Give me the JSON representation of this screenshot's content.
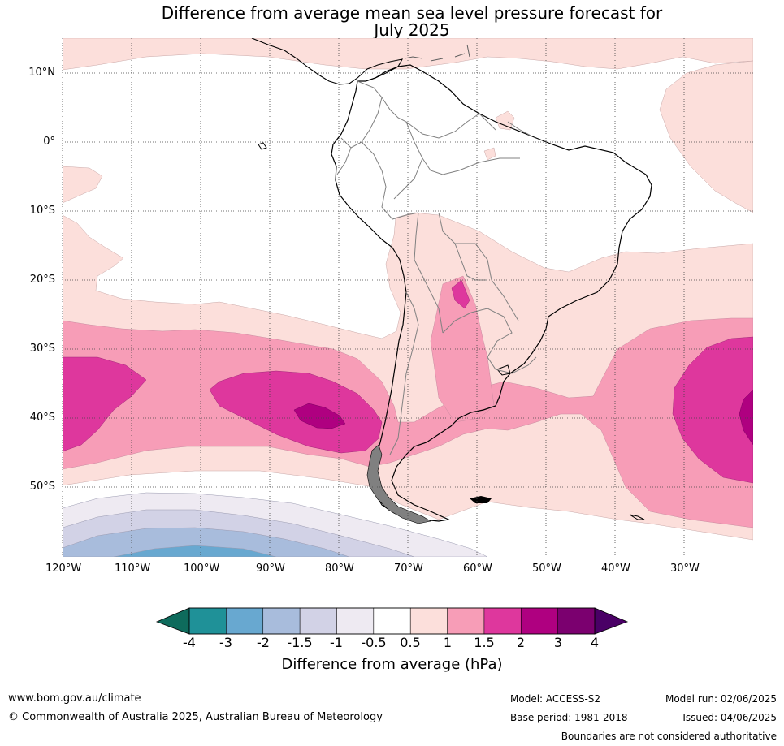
{
  "title_line1": "Difference from average mean sea level pressure forecast for",
  "title_line2": "July 2025",
  "lat_labels": [
    "10°N",
    "0°",
    "10°S",
    "20°S",
    "30°S",
    "40°S",
    "50°S"
  ],
  "lon_labels": [
    "120°W",
    "110°W",
    "100°W",
    "90°W",
    "80°W",
    "70°W",
    "60°W",
    "50°W",
    "40°W",
    "30°W"
  ],
  "colorbar": {
    "label": "Difference from average (hPa)",
    "ticks": [
      "-4",
      "-3",
      "-2",
      "-1.5",
      "-1",
      "-0.5",
      "0.5",
      "1",
      "1.5",
      "2",
      "3",
      "4"
    ],
    "colors": [
      "#0e6b5c",
      "#1f9198",
      "#68a8d0",
      "#a8bcdc",
      "#d2d2e6",
      "#eeeaf2",
      "#ffffff",
      "#fcdfdb",
      "#f79db7",
      "#de379d",
      "#af0080",
      "#7b006f",
      "#4a0066"
    ]
  },
  "footer": {
    "website": "www.bom.gov.au/climate",
    "copyright": "© Commonwealth of Australia 2025, Australian Bureau of Meteorology",
    "model": "Model: ACCESS-S2",
    "base_period": "Base period: 1981-2018",
    "model_run": "Model run: 02/06/2025",
    "issued": "Issued: 04/06/2025",
    "disclaimer": "Boundaries are not considered authoritative"
  }
}
